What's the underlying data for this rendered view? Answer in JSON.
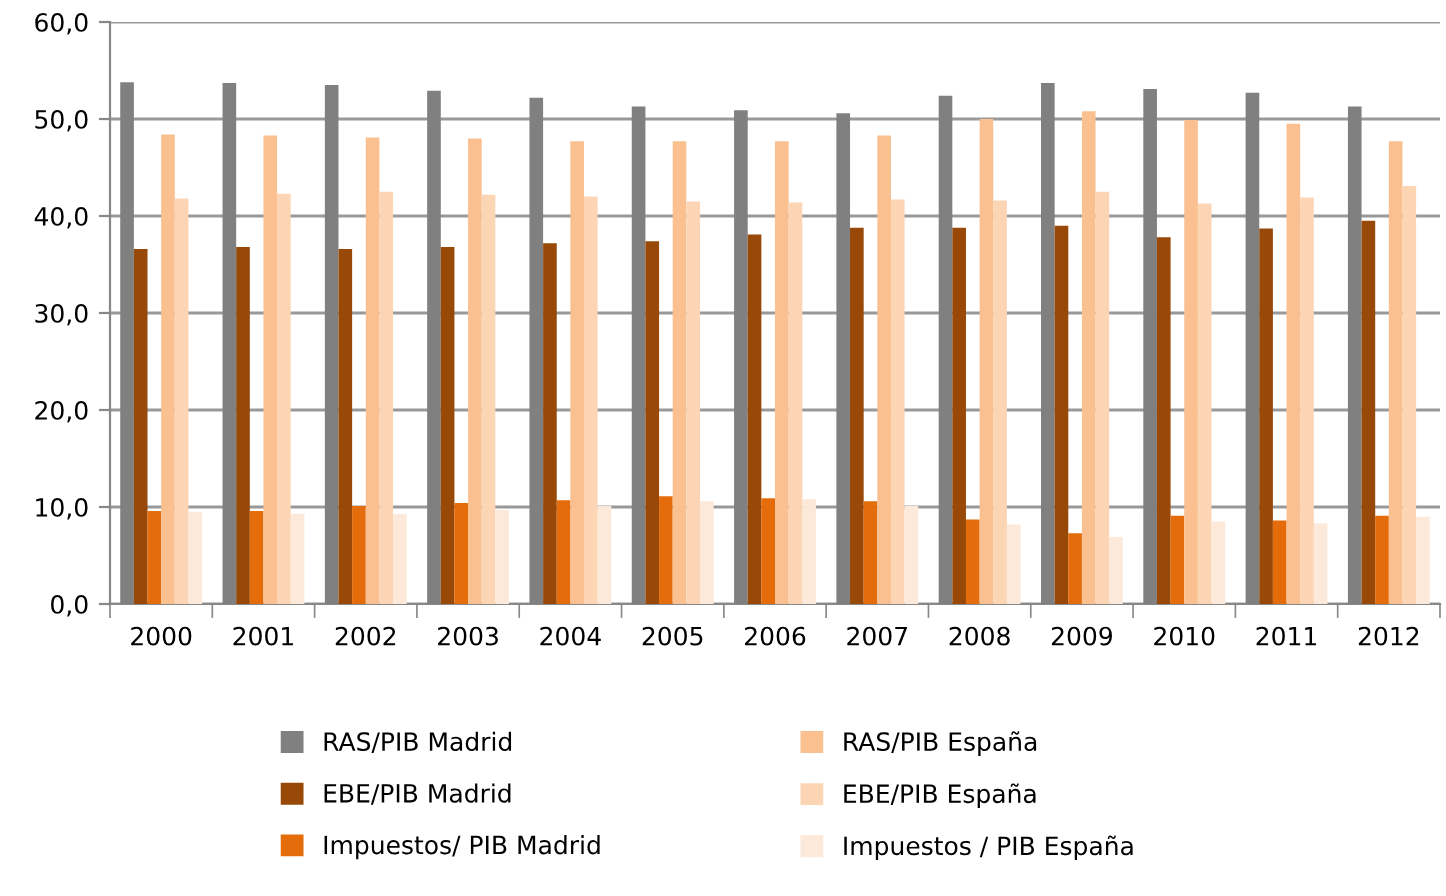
{
  "chart_data": {
    "type": "bar",
    "categories": [
      "2000",
      "2001",
      "2002",
      "2003",
      "2004",
      "2005",
      "2006",
      "2007",
      "2008",
      "2009",
      "2010",
      "2011",
      "2012"
    ],
    "series": [
      {
        "name": "RAS/PIB Madrid",
        "color": "#808080",
        "values": [
          53.8,
          53.7,
          53.5,
          52.9,
          52.2,
          51.3,
          50.9,
          50.6,
          52.4,
          53.7,
          53.1,
          52.7,
          51.3
        ]
      },
      {
        "name": "EBE/PIB Madrid",
        "color": "#984807",
        "values": [
          36.6,
          36.8,
          36.6,
          36.8,
          37.2,
          37.4,
          38.1,
          38.8,
          38.8,
          39.0,
          37.8,
          38.7,
          39.5
        ]
      },
      {
        "name": "Impuestos/ PIB Madrid",
        "color": "#e46c0a",
        "values": [
          9.6,
          9.6,
          10.1,
          10.4,
          10.7,
          11.1,
          10.9,
          10.6,
          8.7,
          7.3,
          9.1,
          8.6,
          9.1
        ]
      },
      {
        "name": "RAS/PIB España",
        "color": "#fac090",
        "values": [
          48.4,
          48.3,
          48.1,
          48.0,
          47.7,
          47.7,
          47.7,
          48.3,
          50.0,
          50.8,
          49.9,
          49.5,
          47.7
        ]
      },
      {
        "name": "EBE/PIB España",
        "color": "#fcd5b5",
        "values": [
          41.8,
          42.3,
          42.5,
          42.2,
          42.0,
          41.5,
          41.4,
          41.7,
          41.6,
          42.5,
          41.3,
          41.9,
          43.1
        ]
      },
      {
        "name": "Impuestos / PIB España",
        "color": "#fde9d9",
        "values": [
          9.5,
          9.3,
          9.3,
          9.7,
          10.1,
          10.6,
          10.8,
          10.1,
          8.2,
          6.9,
          8.5,
          8.3,
          9.0
        ]
      }
    ],
    "ylim": [
      0,
      60
    ],
    "yticks": [
      {
        "value": 0,
        "label": "0,0"
      },
      {
        "value": 10,
        "label": "10,0"
      },
      {
        "value": 20,
        "label": "20,0"
      },
      {
        "value": 30,
        "label": "30,0"
      },
      {
        "value": 40,
        "label": "40,0"
      },
      {
        "value": 50,
        "label": "50,0"
      },
      {
        "value": 60,
        "label": "60,0"
      }
    ],
    "grid": "y",
    "legend": "bottom"
  }
}
